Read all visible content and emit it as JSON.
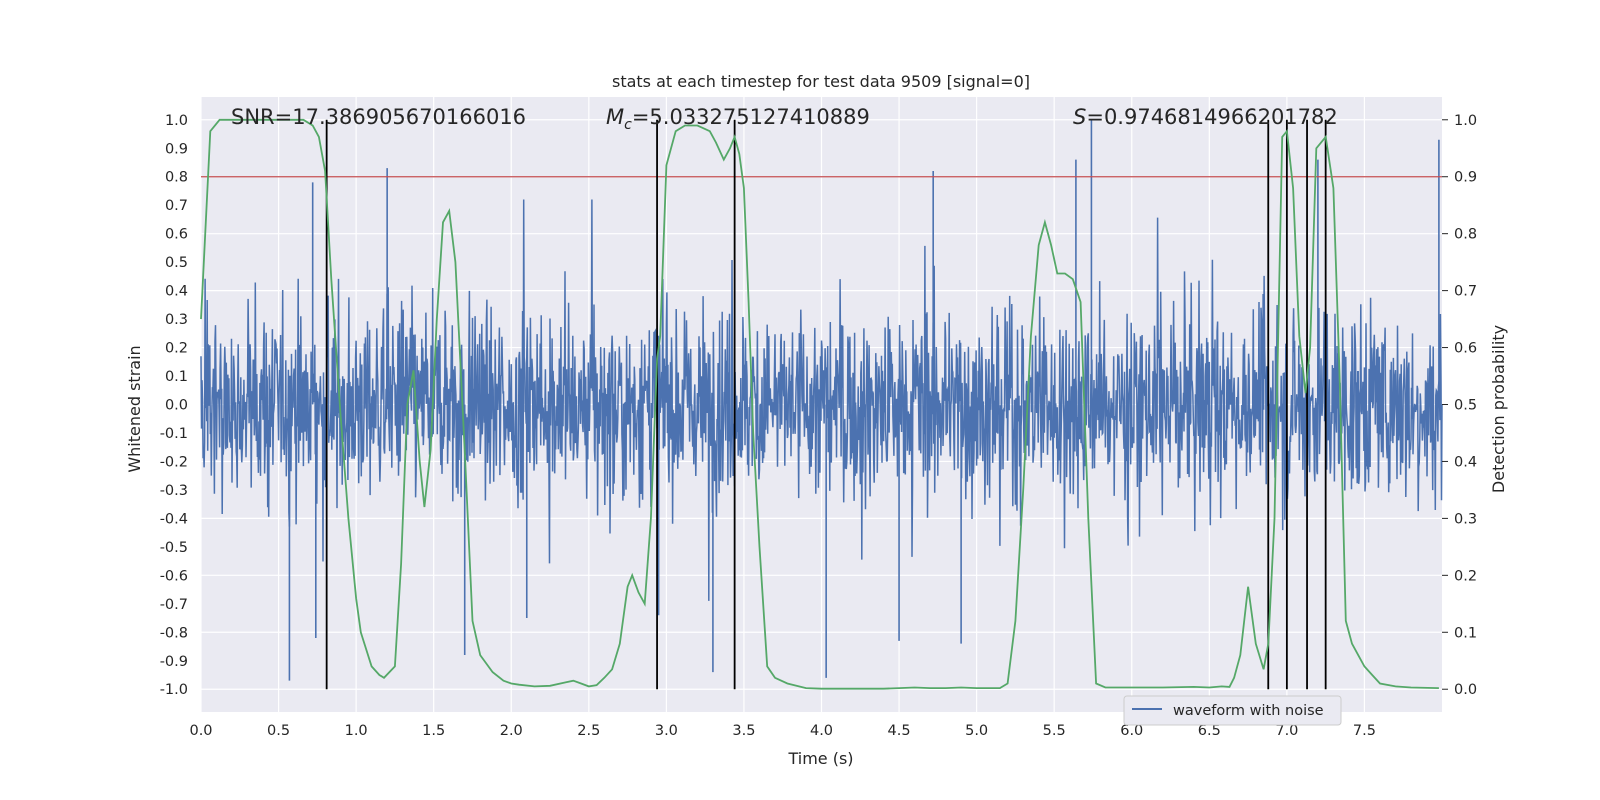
{
  "chart_data": {
    "type": "line",
    "title": "stats at each timestep for test data 9509 [signal=0]",
    "xlabel": "Time (s)",
    "ylabel_left": "Whitened strain",
    "ylabel_right": "Detection probability",
    "xlim": [
      0.0,
      8.0
    ],
    "ylim_left": [
      -1.08,
      1.08
    ],
    "ylim_right": [
      -0.04,
      1.04
    ],
    "x_ticks": [
      0.0,
      0.5,
      1.0,
      1.5,
      2.0,
      2.5,
      3.0,
      3.5,
      4.0,
      4.5,
      5.0,
      5.5,
      6.0,
      6.5,
      7.0,
      7.5
    ],
    "x_tick_labels": [
      "0.0",
      "0.5",
      "1.0",
      "1.5",
      "2.0",
      "2.5",
      "3.0",
      "3.5",
      "4.0",
      "4.5",
      "5.0",
      "5.5",
      "6.0",
      "6.5",
      "7.0",
      "7.5"
    ],
    "y_left_ticks": [
      1.0,
      0.9,
      0.8,
      0.7,
      0.6,
      0.5,
      0.4,
      0.3,
      0.2,
      0.1,
      0.0,
      -0.1,
      -0.2,
      -0.3,
      -0.4,
      -0.5,
      -0.6,
      -0.7,
      -0.8,
      -0.9,
      -1.0
    ],
    "y_left_tick_labels": [
      "1.0",
      "0.9",
      "0.8",
      "0.7",
      "0.6",
      "0.5",
      "0.4",
      "0.3",
      "0.2",
      "0.1",
      "0.0",
      "-0.1",
      "-0.2",
      "-0.3",
      "-0.4",
      "-0.5",
      "-0.6",
      "-0.7",
      "-0.8",
      "-0.9",
      "-1.0"
    ],
    "y_right_ticks": [
      1.0,
      0.9,
      0.8,
      0.7,
      0.6,
      0.5,
      0.4,
      0.3,
      0.2,
      0.1,
      0.0
    ],
    "y_right_tick_labels": [
      "1.0",
      "0.9",
      "0.8",
      "0.7",
      "0.6",
      "0.5",
      "0.4",
      "0.3",
      "0.2",
      "0.1",
      "0.0"
    ],
    "annotations": {
      "snr": "SNR=17.386905670166016",
      "mc_symbol": "M",
      "mc_sub": "c",
      "mc_value": "=5.033275127410889",
      "s_symbol": "S",
      "s_value": "=0.9746814966201782"
    },
    "threshold": {
      "axis": "right",
      "value": 0.9,
      "color": "#c44e52"
    },
    "vertical_markers": [
      0.81,
      2.94,
      3.44,
      6.88,
      7.0,
      7.13,
      7.25
    ],
    "legend": {
      "label": "waveform with noise",
      "position": "lower-right"
    },
    "series": [
      {
        "name": "waveform with noise",
        "axis": "left",
        "color": "#4c72b0",
        "description": "noisy whitened strain, sampled densely over 0-8 s",
        "spikes": [
          {
            "x": 0.57,
            "y": -0.97
          },
          {
            "x": 0.72,
            "y": 0.78
          },
          {
            "x": 0.74,
            "y": -0.82
          },
          {
            "x": 1.2,
            "y": 0.83
          },
          {
            "x": 1.7,
            "y": -0.88
          },
          {
            "x": 2.1,
            "y": -0.75
          },
          {
            "x": 2.95,
            "y": -0.74
          },
          {
            "x": 3.3,
            "y": -0.94
          },
          {
            "x": 4.03,
            "y": -0.96
          },
          {
            "x": 4.5,
            "y": -0.83
          },
          {
            "x": 4.72,
            "y": 0.82
          },
          {
            "x": 4.9,
            "y": -0.84
          },
          {
            "x": 5.64,
            "y": 0.86
          },
          {
            "x": 5.74,
            "y": 1.0
          },
          {
            "x": 7.2,
            "y": 0.86
          },
          {
            "x": 7.98,
            "y": 0.93
          }
        ]
      },
      {
        "name": "detection probability",
        "axis": "right",
        "color": "#55a868",
        "x": [
          0.0,
          0.06,
          0.12,
          0.2,
          0.3,
          0.4,
          0.5,
          0.6,
          0.66,
          0.72,
          0.76,
          0.8,
          0.84,
          0.9,
          0.95,
          1.0,
          1.03,
          1.1,
          1.15,
          1.18,
          1.25,
          1.29,
          1.33,
          1.37,
          1.41,
          1.44,
          1.48,
          1.52,
          1.56,
          1.6,
          1.64,
          1.7,
          1.75,
          1.8,
          1.88,
          1.95,
          2.0,
          2.05,
          2.15,
          2.25,
          2.35,
          2.4,
          2.45,
          2.5,
          2.55,
          2.6,
          2.65,
          2.7,
          2.75,
          2.78,
          2.82,
          2.86,
          2.9,
          2.94,
          2.96,
          3.0,
          3.06,
          3.12,
          3.2,
          3.28,
          3.32,
          3.37,
          3.41,
          3.44,
          3.47,
          3.5,
          3.53,
          3.56,
          3.6,
          3.65,
          3.7,
          3.78,
          3.9,
          4.0,
          4.2,
          4.4,
          4.5,
          4.6,
          4.7,
          4.8,
          4.9,
          5.0,
          5.1,
          5.15,
          5.2,
          5.25,
          5.3,
          5.35,
          5.4,
          5.44,
          5.48,
          5.52,
          5.57,
          5.62,
          5.67,
          5.72,
          5.77,
          5.83,
          6.0,
          6.2,
          6.4,
          6.5,
          6.58,
          6.63,
          6.66,
          6.7,
          6.75,
          6.8,
          6.85,
          6.88,
          6.92,
          6.97,
          7.0,
          7.04,
          7.08,
          7.12,
          7.15,
          7.19,
          7.25,
          7.3,
          7.34,
          7.38,
          7.42,
          7.46,
          7.5,
          7.55,
          7.6,
          7.7,
          7.8,
          7.98
        ],
        "y": [
          0.65,
          0.98,
          1.0,
          1.0,
          1.0,
          1.0,
          1.0,
          1.0,
          1.0,
          0.99,
          0.97,
          0.91,
          0.72,
          0.48,
          0.3,
          0.16,
          0.1,
          0.04,
          0.025,
          0.02,
          0.04,
          0.22,
          0.5,
          0.56,
          0.4,
          0.32,
          0.42,
          0.65,
          0.82,
          0.84,
          0.75,
          0.42,
          0.12,
          0.06,
          0.03,
          0.015,
          0.01,
          0.008,
          0.005,
          0.006,
          0.012,
          0.015,
          0.01,
          0.005,
          0.007,
          0.02,
          0.035,
          0.08,
          0.18,
          0.2,
          0.17,
          0.15,
          0.3,
          0.58,
          0.62,
          0.92,
          0.98,
          0.99,
          0.99,
          0.98,
          0.96,
          0.93,
          0.95,
          0.97,
          0.94,
          0.88,
          0.68,
          0.45,
          0.25,
          0.04,
          0.02,
          0.01,
          0.002,
          0.001,
          0.001,
          0.001,
          0.002,
          0.003,
          0.002,
          0.002,
          0.003,
          0.002,
          0.002,
          0.002,
          0.01,
          0.12,
          0.35,
          0.62,
          0.78,
          0.82,
          0.78,
          0.73,
          0.73,
          0.72,
          0.68,
          0.3,
          0.01,
          0.003,
          0.003,
          0.003,
          0.004,
          0.003,
          0.005,
          0.004,
          0.02,
          0.06,
          0.18,
          0.08,
          0.035,
          0.08,
          0.3,
          0.97,
          0.98,
          0.88,
          0.62,
          0.52,
          0.6,
          0.95,
          0.97,
          0.88,
          0.55,
          0.12,
          0.08,
          0.06,
          0.04,
          0.025,
          0.01,
          0.005,
          0.003,
          0.002
        ]
      }
    ]
  }
}
